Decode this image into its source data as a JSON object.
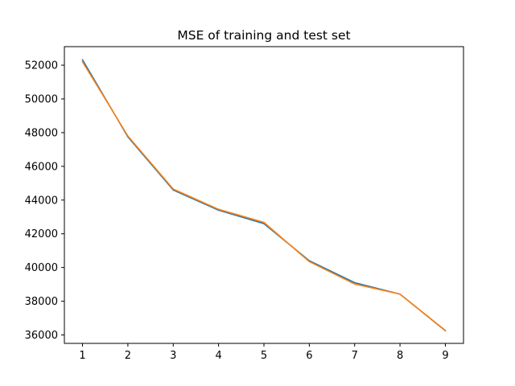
{
  "chart_data": {
    "type": "line",
    "title": "MSE of training and test set",
    "xlabel": "",
    "ylabel": "",
    "x": [
      1,
      2,
      3,
      4,
      5,
      6,
      7,
      8,
      9
    ],
    "xticks": [
      1,
      2,
      3,
      4,
      5,
      6,
      7,
      8,
      9
    ],
    "yticks": [
      36000,
      38000,
      40000,
      42000,
      44000,
      46000,
      48000,
      50000,
      52000
    ],
    "xlim": [
      0.6,
      9.4
    ],
    "ylim": [
      35500,
      53100
    ],
    "grid": false,
    "legend": "none",
    "series": [
      {
        "color": "#1f77b4",
        "values": [
          52320,
          47750,
          44600,
          43400,
          42600,
          40400,
          39100,
          38420,
          36250
        ]
      },
      {
        "color": "#ff7f0e",
        "values": [
          52200,
          47800,
          44650,
          43450,
          42680,
          40350,
          39020,
          38420,
          36270
        ]
      }
    ]
  }
}
